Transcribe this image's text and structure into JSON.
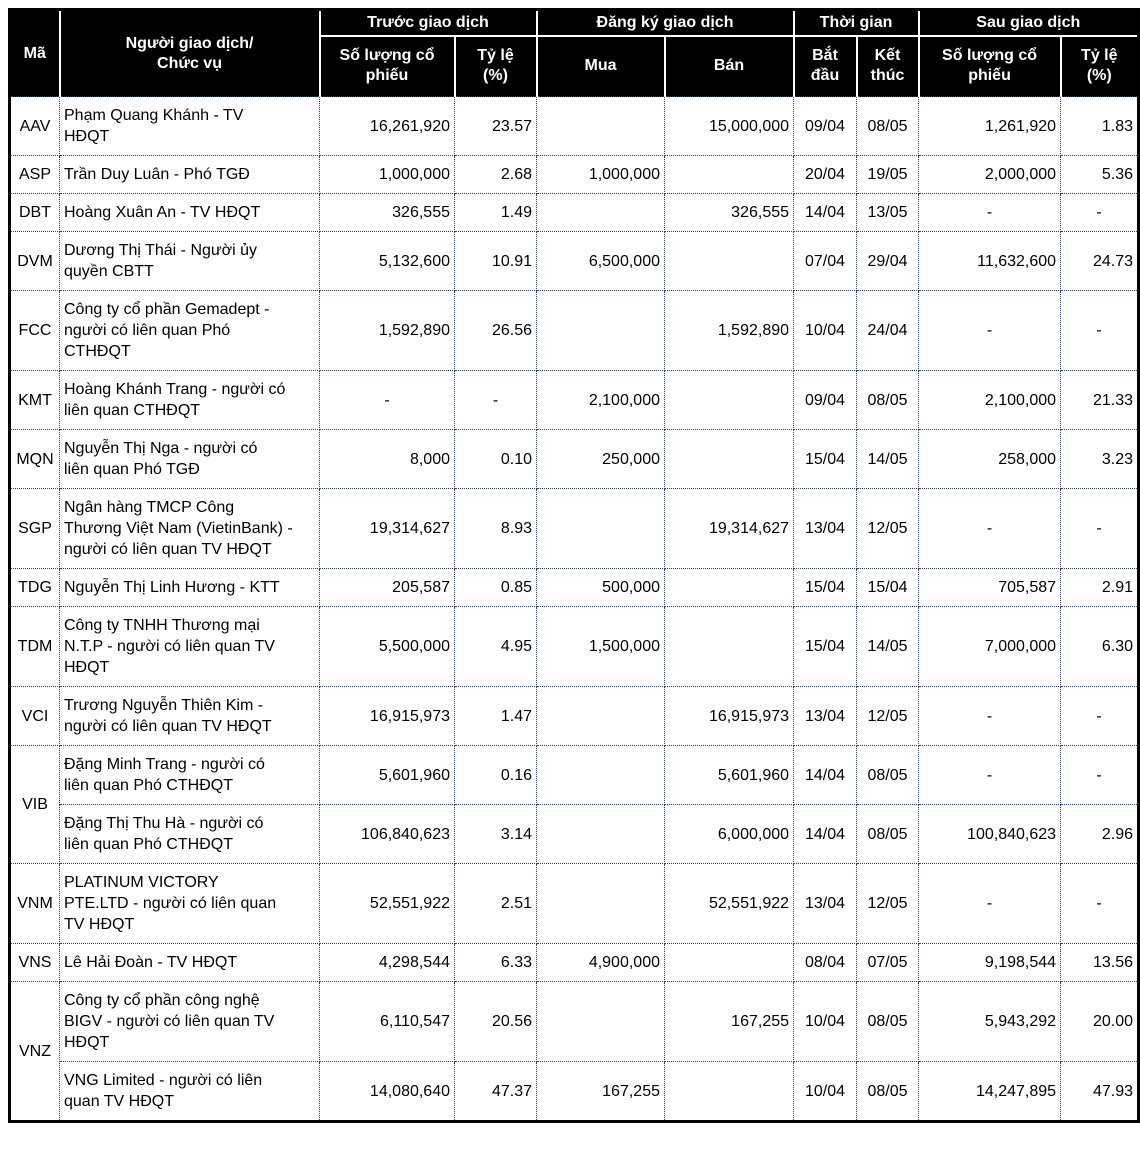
{
  "colors": {
    "header_bg": "#000000",
    "header_text": "#ffffff",
    "grid_dotted": "#2f3e5f",
    "outer_border": "#000000"
  },
  "table": {
    "header": {
      "ma": "Mã",
      "nguoi": "Người giao dịch/\nChức vụ",
      "truoc": "Trước giao dịch",
      "dang_ky": "Đăng ký giao dịch",
      "thoi_gian": "Thời gian",
      "sau": "Sau giao dịch",
      "so_luong": "Số lượng cổ\nphiếu",
      "ty_le": "Tỷ lệ\n(%)",
      "mua": "Mua",
      "ban": "Bán",
      "bat_dau": "Bắt\nđầu",
      "ket_thuc": "Kết\nthúc"
    },
    "rows": [
      {
        "code": "AAV",
        "code_span": 1,
        "name": "Phạm Quang Khánh - TV\nHĐQT",
        "before_shares": "16,261,920",
        "before_pct": "23.57",
        "buy": "",
        "sell": "15,000,000",
        "start": "09/04",
        "end": "08/05",
        "after_shares": "1,261,920",
        "after_pct": "1.83"
      },
      {
        "code": "ASP",
        "code_span": 1,
        "name": "Trần Duy Luân - Phó TGĐ",
        "before_shares": "1,000,000",
        "before_pct": "2.68",
        "buy": "1,000,000",
        "sell": "",
        "start": "20/04",
        "end": "19/05",
        "after_shares": "2,000,000",
        "after_pct": "5.36"
      },
      {
        "code": "DBT",
        "code_span": 1,
        "name": "Hoàng Xuân An - TV HĐQT",
        "before_shares": "326,555",
        "before_pct": "1.49",
        "buy": "",
        "sell": "326,555",
        "start": "14/04",
        "end": "13/05",
        "after_shares": "-",
        "after_pct": "-"
      },
      {
        "code": "DVM",
        "code_span": 1,
        "name": "Dương Thị Thái - Người ủy\nquyền CBTT",
        "before_shares": "5,132,600",
        "before_pct": "10.91",
        "buy": "6,500,000",
        "sell": "",
        "start": "07/04",
        "end": "29/04",
        "after_shares": "11,632,600",
        "after_pct": "24.73"
      },
      {
        "code": "FCC",
        "code_span": 1,
        "name": "Công ty cổ phần Gemadept -\nngười có liên quan Phó\nCTHĐQT",
        "before_shares": "1,592,890",
        "before_pct": "26.56",
        "buy": "",
        "sell": "1,592,890",
        "start": "10/04",
        "end": "24/04",
        "after_shares": "-",
        "after_pct": "-"
      },
      {
        "code": "KMT",
        "code_span": 1,
        "name": "Hoàng Khánh Trang - người có\nliên quan CTHĐQT",
        "before_shares": "-",
        "before_pct": "-",
        "buy": "2,100,000",
        "sell": "",
        "start": "09/04",
        "end": "08/05",
        "after_shares": "2,100,000",
        "after_pct": "21.33"
      },
      {
        "code": "MQN",
        "code_span": 1,
        "name": "Nguyễn Thị Nga - người có\nliên quan Phó TGĐ",
        "before_shares": "8,000",
        "before_pct": "0.10",
        "buy": "250,000",
        "sell": "",
        "start": "15/04",
        "end": "14/05",
        "after_shares": "258,000",
        "after_pct": "3.23"
      },
      {
        "code": "SGP",
        "code_span": 1,
        "name": "Ngân hàng TMCP Công\nThương Việt Nam (VietinBank) -\nngười có liên quan TV HĐQT",
        "before_shares": "19,314,627",
        "before_pct": "8.93",
        "buy": "",
        "sell": "19,314,627",
        "start": "13/04",
        "end": "12/05",
        "after_shares": "-",
        "after_pct": "-"
      },
      {
        "code": "TDG",
        "code_span": 1,
        "name": "Nguyễn Thị Linh Hương - KTT",
        "before_shares": "205,587",
        "before_pct": "0.85",
        "buy": "500,000",
        "sell": "",
        "start": "15/04",
        "end": "15/04",
        "after_shares": "705,587",
        "after_pct": "2.91"
      },
      {
        "code": "TDM",
        "code_span": 1,
        "name": "Công ty TNHH Thương mại\nN.T.P - người có liên quan TV\nHĐQT",
        "before_shares": "5,500,000",
        "before_pct": "4.95",
        "buy": "1,500,000",
        "sell": "",
        "start": "15/04",
        "end": "14/05",
        "after_shares": "7,000,000",
        "after_pct": "6.30"
      },
      {
        "code": "VCI",
        "code_span": 1,
        "name": "Trương Nguyễn Thiên Kim -\nngười có liên quan TV HĐQT",
        "before_shares": "16,915,973",
        "before_pct": "1.47",
        "buy": "",
        "sell": "16,915,973",
        "start": "13/04",
        "end": "12/05",
        "after_shares": "-",
        "after_pct": "-"
      },
      {
        "code": "VIB",
        "code_span": 2,
        "name": "Đặng Minh Trang - người có\nliên quan Phó CTHĐQT",
        "before_shares": "5,601,960",
        "before_pct": "0.16",
        "buy": "",
        "sell": "5,601,960",
        "start": "14/04",
        "end": "08/05",
        "after_shares": "-",
        "after_pct": "-"
      },
      {
        "code": null,
        "code_span": 0,
        "name": "Đặng Thị Thu Hà - người có\nliên quan Phó CTHĐQT",
        "before_shares": "106,840,623",
        "before_pct": "3.14",
        "buy": "",
        "sell": "6,000,000",
        "start": "14/04",
        "end": "08/05",
        "after_shares": "100,840,623",
        "after_pct": "2.96"
      },
      {
        "code": "VNM",
        "code_span": 1,
        "name": "PLATINUM VICTORY\nPTE.LTD - người có liên quan\nTV HĐQT",
        "before_shares": "52,551,922",
        "before_pct": "2.51",
        "buy": "",
        "sell": "52,551,922",
        "start": "13/04",
        "end": "12/05",
        "after_shares": "-",
        "after_pct": "-"
      },
      {
        "code": "VNS",
        "code_span": 1,
        "name": "Lê Hải Đoàn - TV HĐQT",
        "before_shares": "4,298,544",
        "before_pct": "6.33",
        "buy": "4,900,000",
        "sell": "",
        "start": "08/04",
        "end": "07/05",
        "after_shares": "9,198,544",
        "after_pct": "13.56"
      },
      {
        "code": "VNZ",
        "code_span": 2,
        "name": "Công ty cổ phần công nghệ\nBIGV - người có liên quan TV\nHĐQT",
        "before_shares": "6,110,547",
        "before_pct": "20.56",
        "buy": "",
        "sell": "167,255",
        "start": "10/04",
        "end": "08/05",
        "after_shares": "5,943,292",
        "after_pct": "20.00"
      },
      {
        "code": null,
        "code_span": 0,
        "name": "VNG Limited - người có liên\nquan TV HĐQT",
        "before_shares": "14,080,640",
        "before_pct": "47.37",
        "buy": "167,255",
        "sell": "",
        "start": "10/04",
        "end": "08/05",
        "after_shares": "14,247,895",
        "after_pct": "47.93"
      }
    ]
  }
}
